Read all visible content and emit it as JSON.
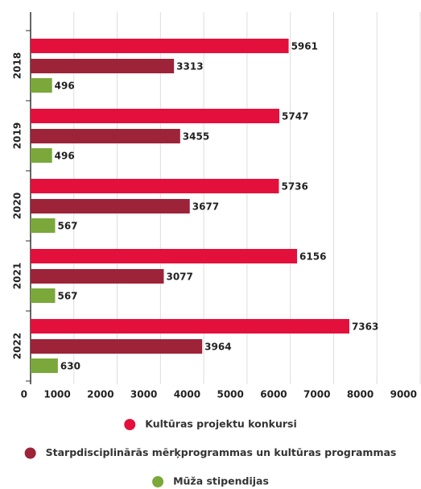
{
  "chart_data": {
    "type": "bar",
    "orientation": "horizontal",
    "categories": [
      "2018",
      "2019",
      "2020",
      "2021",
      "2022"
    ],
    "series": [
      {
        "name": "Kultūras projektu konkursi",
        "color": "#e3103c",
        "values": [
          5961,
          5747,
          5736,
          6156,
          7363
        ]
      },
      {
        "name": "Starpdisciplinārās mērķprogrammas un kultūras programmas",
        "color": "#9c2338",
        "values": [
          3313,
          3455,
          3677,
          3077,
          3964
        ]
      },
      {
        "name": "Mūža stipendijas",
        "color": "#7ba83a",
        "values": [
          496,
          496,
          567,
          567,
          630
        ]
      }
    ],
    "xlim": [
      0,
      9000
    ],
    "xticks": [
      0,
      1000,
      2000,
      3000,
      4000,
      5000,
      6000,
      7000,
      8000,
      9000
    ],
    "grid": true,
    "legend": "bottom"
  }
}
